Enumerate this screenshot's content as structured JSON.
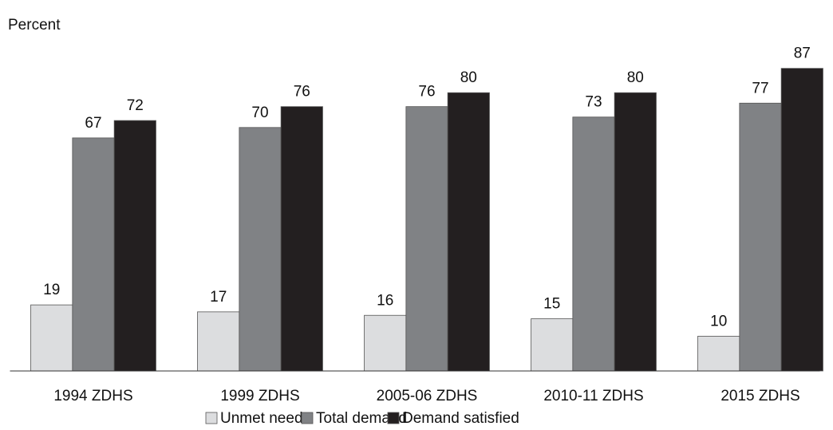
{
  "chart_data": {
    "type": "bar",
    "y_label": "Percent",
    "categories": [
      "1994 ZDHS",
      "1999 ZDHS",
      "2005-06 ZDHS",
      "2010-11 ZDHS",
      "2015 ZDHS"
    ],
    "series": [
      {
        "name": "Unmet need",
        "color": "#dcdddf",
        "values": [
          19,
          17,
          16,
          15,
          10
        ]
      },
      {
        "name": "Total demand",
        "color": "#808285",
        "values": [
          67,
          70,
          76,
          73,
          77
        ]
      },
      {
        "name": "Demand satisfied",
        "color": "#231f20",
        "values": [
          72,
          76,
          80,
          80,
          87
        ]
      }
    ],
    "ylim": [
      0,
      100
    ]
  }
}
